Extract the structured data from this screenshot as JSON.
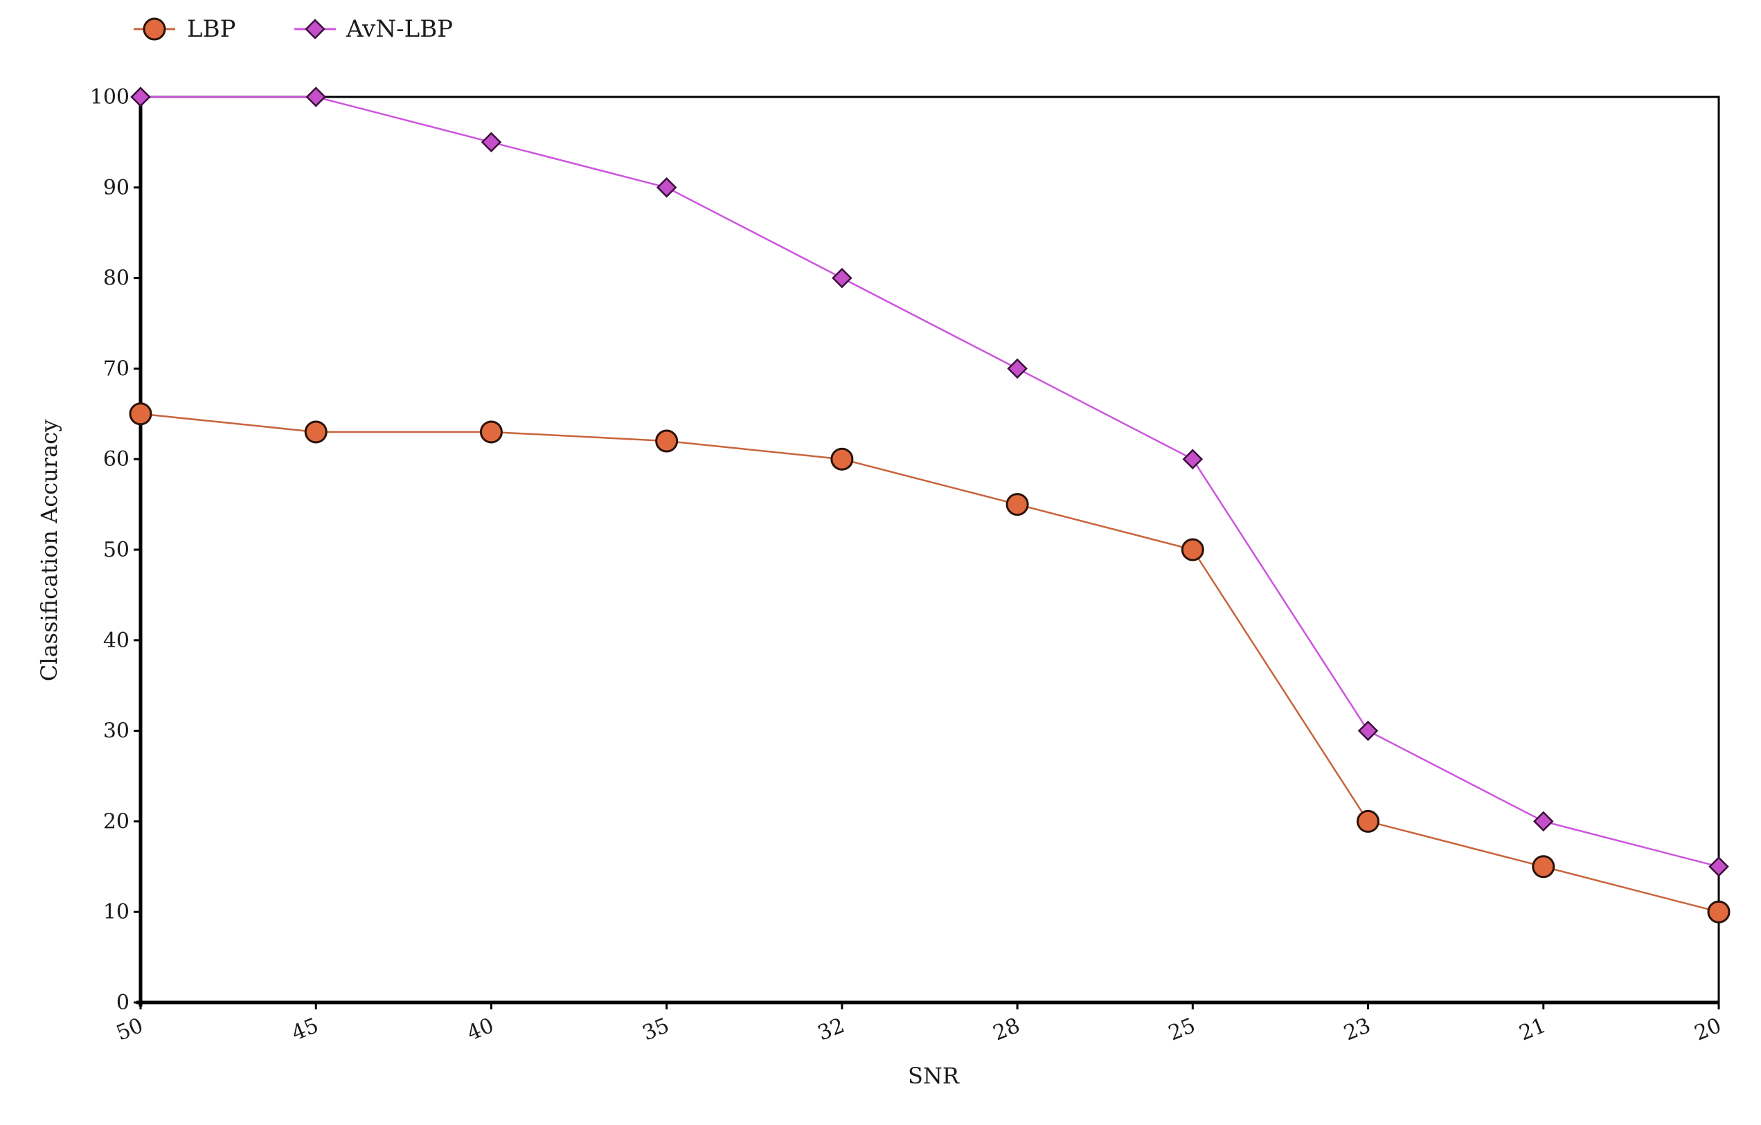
{
  "chart_data": {
    "type": "line",
    "title": "",
    "xlabel": "SNR",
    "ylabel": "Classification Accuracy",
    "categories": [
      "50",
      "45",
      "40",
      "35",
      "32",
      "28",
      "25",
      "23",
      "21",
      "20"
    ],
    "ylim": [
      0,
      100
    ],
    "yticks": [
      0,
      10,
      20,
      30,
      40,
      50,
      60,
      70,
      80,
      90,
      100
    ],
    "grid": false,
    "legend_position": "top-left",
    "series": [
      {
        "name": "LBP",
        "marker": "circle",
        "line_color": "#c8643c",
        "marker_fill": "#e06a3e",
        "values": [
          65,
          63,
          63,
          62,
          60,
          55,
          50,
          20,
          15,
          10
        ]
      },
      {
        "name": "AvN-LBP",
        "marker": "diamond",
        "line_color": "#cc55dd",
        "marker_fill": "#c44fc8",
        "values": [
          100,
          100,
          95,
          90,
          80,
          70,
          60,
          30,
          20,
          15
        ]
      }
    ]
  }
}
